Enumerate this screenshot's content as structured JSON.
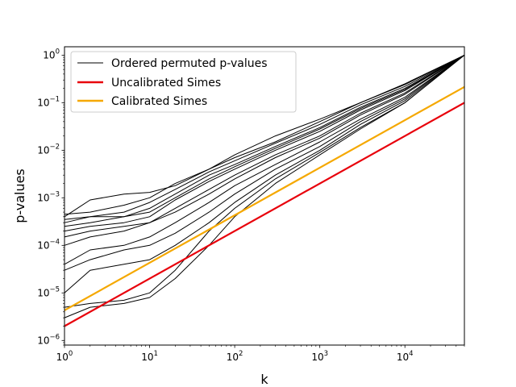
{
  "chart_data": {
    "type": "line",
    "title": "",
    "xlabel": "k",
    "ylabel": "p-values",
    "xscale": "log",
    "yscale": "log",
    "xlim": [
      1,
      50000
    ],
    "ylim": [
      8e-07,
      1.5
    ],
    "grid": false,
    "legend_position": "top-left",
    "x_ticks": [
      {
        "base": "10",
        "exp": "0"
      },
      {
        "base": "10",
        "exp": "1"
      },
      {
        "base": "10",
        "exp": "2"
      },
      {
        "base": "10",
        "exp": "3"
      },
      {
        "base": "10",
        "exp": "4"
      }
    ],
    "y_ticks": [
      {
        "base": "10",
        "exp": "−6"
      },
      {
        "base": "10",
        "exp": "−5"
      },
      {
        "base": "10",
        "exp": "−4"
      },
      {
        "base": "10",
        "exp": "−3"
      },
      {
        "base": "10",
        "exp": "−2"
      },
      {
        "base": "10",
        "exp": "−1"
      },
      {
        "base": "10",
        "exp": "0"
      }
    ],
    "legend": [
      {
        "label": "Ordered permuted p-values",
        "color": "#000000"
      },
      {
        "label": "Uncalibrated Simes",
        "color": "#e8000b"
      },
      {
        "label": "Calibrated Simes",
        "color": "#f5a800"
      }
    ],
    "permuted_series_color": "#000000",
    "permuted_series": [
      {
        "x": [
          1,
          2,
          5,
          10,
          20,
          50,
          100,
          300,
          1000,
          3000,
          10000,
          50000
        ],
        "y": [
          0.00045,
          0.0005,
          0.0007,
          0.001,
          0.002,
          0.004,
          0.007,
          0.015,
          0.04,
          0.1,
          0.25,
          1
        ]
      },
      {
        "x": [
          1,
          2,
          5,
          10,
          20,
          50,
          100,
          300,
          1000,
          3000,
          10000,
          50000
        ],
        "y": [
          0.0004,
          0.0009,
          0.0012,
          0.0013,
          0.0018,
          0.004,
          0.008,
          0.02,
          0.045,
          0.1,
          0.24,
          1
        ]
      },
      {
        "x": [
          1,
          2,
          5,
          10,
          20,
          50,
          100,
          300,
          1000,
          3000,
          10000,
          50000
        ],
        "y": [
          0.00035,
          0.0004,
          0.0005,
          0.0008,
          0.0015,
          0.0035,
          0.006,
          0.014,
          0.035,
          0.09,
          0.22,
          1
        ]
      },
      {
        "x": [
          1,
          2,
          5,
          10,
          20,
          50,
          100,
          300,
          1000,
          3000,
          10000,
          50000
        ],
        "y": [
          0.0003,
          0.0004,
          0.0004,
          0.0006,
          0.0012,
          0.003,
          0.005,
          0.012,
          0.03,
          0.08,
          0.2,
          1
        ]
      },
      {
        "x": [
          1,
          2,
          5,
          10,
          20,
          50,
          100,
          300,
          1000,
          3000,
          10000,
          50000
        ],
        "y": [
          0.00025,
          0.0003,
          0.0004,
          0.0005,
          0.001,
          0.0025,
          0.0045,
          0.011,
          0.028,
          0.075,
          0.19,
          1
        ]
      },
      {
        "x": [
          1,
          2,
          5,
          10,
          20,
          50,
          100,
          300,
          1000,
          3000,
          10000,
          50000
        ],
        "y": [
          0.0002,
          0.00025,
          0.0003,
          0.0004,
          0.0009,
          0.0022,
          0.004,
          0.01,
          0.025,
          0.07,
          0.18,
          1
        ]
      },
      {
        "x": [
          1,
          2,
          5,
          10,
          20,
          50,
          100,
          300,
          1000,
          3000,
          10000,
          50000
        ],
        "y": [
          0.00015,
          0.0002,
          0.00025,
          0.0003,
          0.0006,
          0.0015,
          0.003,
          0.008,
          0.02,
          0.06,
          0.16,
          1
        ]
      },
      {
        "x": [
          1,
          2,
          5,
          10,
          20,
          50,
          100,
          300,
          1000,
          3000,
          10000,
          50000
        ],
        "y": [
          0.0001,
          0.00015,
          0.0002,
          0.0003,
          0.0005,
          0.0012,
          0.0025,
          0.007,
          0.018,
          0.055,
          0.15,
          1
        ]
      },
      {
        "x": [
          1,
          2,
          5,
          10,
          20,
          50,
          100,
          300,
          1000,
          3000,
          10000,
          50000
        ],
        "y": [
          4e-05,
          8e-05,
          0.0001,
          0.00015,
          0.0003,
          0.0008,
          0.0018,
          0.005,
          0.015,
          0.045,
          0.13,
          1
        ]
      },
      {
        "x": [
          1,
          2,
          5,
          10,
          20,
          50,
          100,
          300,
          1000,
          3000,
          10000,
          50000
        ],
        "y": [
          3e-05,
          5e-05,
          8e-05,
          0.0001,
          0.00018,
          0.0005,
          0.0012,
          0.004,
          0.012,
          0.04,
          0.12,
          1
        ]
      },
      {
        "x": [
          1,
          2,
          5,
          10,
          20,
          50,
          100,
          300,
          1000,
          3000,
          10000,
          50000
        ],
        "y": [
          1e-05,
          3e-05,
          4e-05,
          5e-05,
          0.0001,
          0.0003,
          0.0008,
          0.003,
          0.01,
          0.035,
          0.11,
          1
        ]
      },
      {
        "x": [
          1,
          2,
          5,
          10,
          20,
          50,
          100,
          300,
          1000,
          3000,
          10000,
          50000
        ],
        "y": [
          5e-06,
          6e-06,
          7e-06,
          1e-05,
          3e-05,
          0.0002,
          0.0006,
          0.0025,
          0.009,
          0.03,
          0.1,
          1
        ]
      },
      {
        "x": [
          1,
          2,
          5,
          10,
          20,
          50,
          100,
          300,
          1000,
          3000,
          10000,
          50000
        ],
        "y": [
          3e-06,
          5e-06,
          6e-06,
          8e-06,
          2e-05,
          0.0001,
          0.0004,
          0.002,
          0.008,
          0.028,
          0.1,
          1
        ]
      }
    ],
    "simes_series": [
      {
        "name": "Uncalibrated Simes",
        "color": "#e8000b",
        "x": [
          1,
          50000
        ],
        "y": [
          2e-06,
          0.1
        ]
      },
      {
        "name": "Calibrated Simes",
        "color": "#f5a800",
        "x": [
          1,
          50000
        ],
        "y": [
          4.3e-06,
          0.215
        ]
      }
    ]
  }
}
